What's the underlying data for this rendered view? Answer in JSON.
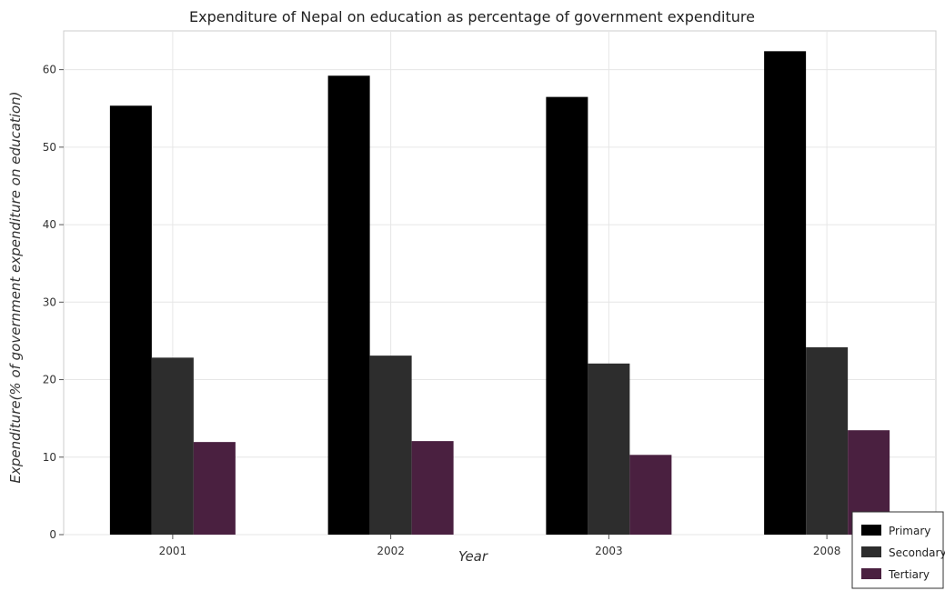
{
  "chart_data": {
    "type": "bar",
    "title": "Expenditure of Nepal on education as percentage of government expenditure",
    "xlabel": "Year",
    "ylabel": "Expenditure(% of government expenditure on education)",
    "categories": [
      "2001",
      "2002",
      "2003",
      "2008"
    ],
    "ylim": [
      0,
      65
    ],
    "yticks": [
      0,
      10,
      20,
      30,
      40,
      50,
      60
    ],
    "grid": true,
    "legend_position": "bottom-right",
    "series": [
      {
        "name": "Primary",
        "color": "#000000",
        "values": [
          55.35,
          59.22,
          56.48,
          62.38
        ]
      },
      {
        "name": "Secondary",
        "color": "#2d2d2d",
        "values": [
          22.84,
          23.1,
          22.08,
          24.18
        ]
      },
      {
        "name": "Tertiary",
        "color": "#4a2040",
        "values": [
          11.95,
          12.07,
          10.29,
          13.47
        ]
      }
    ]
  }
}
